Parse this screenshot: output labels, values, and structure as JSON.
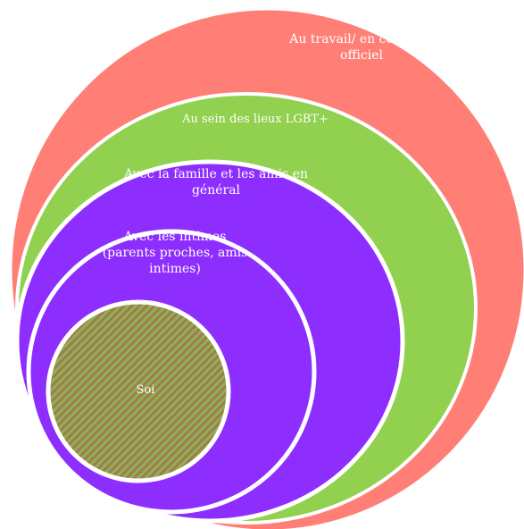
{
  "diagram": {
    "circles": [
      {
        "id": "work",
        "label_lines": [
          "Au travail/ en contexte",
          "officiel"
        ],
        "color": "#FF7F77"
      },
      {
        "id": "lgbt",
        "label_lines": [
          "Au sein des lieux LGBT+"
        ],
        "color": "#92D050"
      },
      {
        "id": "family",
        "label_lines": [
          "Avec la famille et les amis en",
          "général"
        ],
        "color": "#8D2EFF"
      },
      {
        "id": "intimates",
        "label_lines": [
          "Avec les intimes",
          "(parents proches, amis",
          "intimes)"
        ],
        "color": "#8D2EFF"
      },
      {
        "id": "self",
        "label_lines": [
          "Soi"
        ],
        "color": "#A07C48",
        "pattern_stripe_color": "#8FB05A"
      }
    ],
    "ring_stroke_color": "#FFFFFF"
  }
}
